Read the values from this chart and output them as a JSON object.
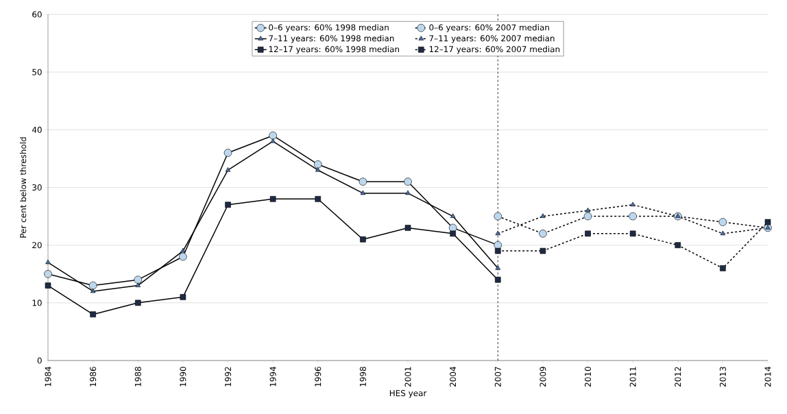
{
  "chart_data": {
    "type": "line",
    "xlabel": "HES year",
    "ylabel": "Per cent below threshold",
    "categories": [
      "1984",
      "1986",
      "1988",
      "1990",
      "1992",
      "1994",
      "1996",
      "1998",
      "2001",
      "2004",
      "2007",
      "2009",
      "2010",
      "2011",
      "2012",
      "2013",
      "2014"
    ],
    "series": [
      {
        "name": "0–6 years: 60% 1998 median",
        "color": "#bdd7ee",
        "marker": "circle",
        "line_style": "solid",
        "values": [
          15,
          13,
          14,
          18,
          36,
          39,
          34,
          31,
          31,
          23,
          20,
          null,
          null,
          null,
          null,
          null,
          null
        ]
      },
      {
        "name": "0–6 years: 60% 2007 median",
        "color": "#bdd7ee",
        "marker": "circle",
        "line_style": "dashed",
        "values": [
          null,
          null,
          null,
          null,
          null,
          null,
          null,
          null,
          null,
          null,
          25,
          22,
          25,
          25,
          25,
          24,
          23
        ]
      },
      {
        "name": "7–11 years: 60% 1998 median",
        "color": "#4a6fa5",
        "marker": "triangle",
        "line_style": "solid",
        "values": [
          17,
          12,
          13,
          19,
          33,
          38,
          33,
          29,
          29,
          25,
          16,
          null,
          null,
          null,
          null,
          null,
          null
        ]
      },
      {
        "name": "7–11 years: 60% 2007 median",
        "color": "#4a6fa5",
        "marker": "triangle",
        "line_style": "dashed",
        "values": [
          null,
          null,
          null,
          null,
          null,
          null,
          null,
          null,
          null,
          null,
          22,
          25,
          26,
          27,
          25,
          22,
          23
        ]
      },
      {
        "name": "12–17 years: 60% 1998 median",
        "color": "#1f2a44",
        "marker": "square",
        "line_style": "solid",
        "values": [
          13,
          8,
          10,
          11,
          27,
          28,
          28,
          21,
          23,
          22,
          14,
          null,
          null,
          null,
          null,
          null,
          null
        ]
      },
      {
        "name": "12–17 years: 60% 2007 median",
        "color": "#1f2a44",
        "marker": "square",
        "line_style": "dashed",
        "values": [
          null,
          null,
          null,
          null,
          null,
          null,
          null,
          null,
          null,
          null,
          19,
          19,
          22,
          22,
          20,
          16,
          24
        ]
      }
    ],
    "ylim": [
      0,
      60
    ],
    "yticks": [
      0,
      10,
      20,
      30,
      40,
      50,
      60
    ],
    "grid": "y",
    "legend": "top",
    "ref_lines": [
      {
        "axis": "x",
        "value": "2007",
        "color": "#000000",
        "line_style": "dashed"
      }
    ]
  }
}
